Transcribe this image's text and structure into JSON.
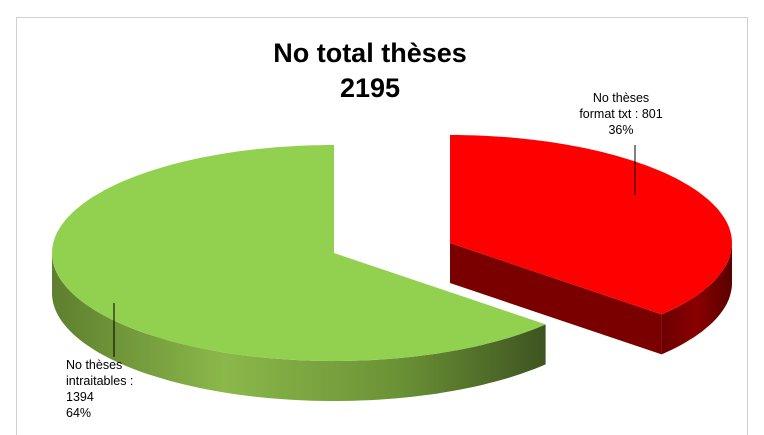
{
  "chart_data": {
    "type": "pie",
    "style": "3d-exploded",
    "title_line1": "No total thèses",
    "title_line2": "2195",
    "slices": [
      {
        "label_line1": "No thèses",
        "label_line2": "format txt : 801",
        "label_line3": "36%",
        "value": 801,
        "percent": 36,
        "color": "#ff0000",
        "side_color": "#7a0000"
      },
      {
        "label_line1": "No thèses",
        "label_line2": "intraitables :",
        "label_line3": "1394",
        "label_line4": "64%",
        "value": 1394,
        "percent": 64,
        "color": "#92d050",
        "side_color": "#4f6b28"
      }
    ]
  }
}
